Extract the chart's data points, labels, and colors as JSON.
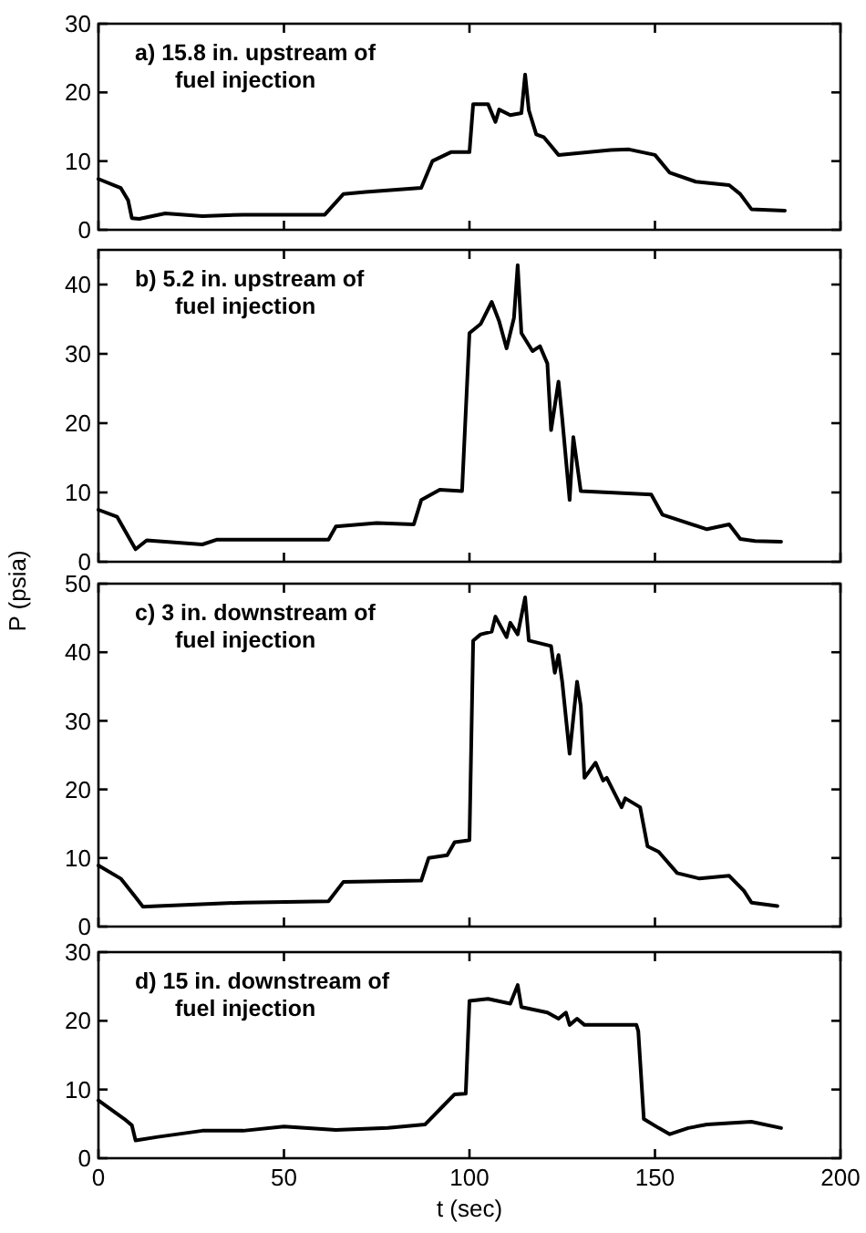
{
  "chart_data": [
    {
      "type": "line",
      "annotations": [
        "a) 15.8 in. upstream of\nfuel injection"
      ],
      "xlim": [
        0,
        200
      ],
      "xticks": [
        0,
        50,
        100,
        150,
        200
      ],
      "ylim": [
        0,
        30
      ],
      "yticks": [
        0,
        10,
        20,
        30
      ],
      "tick_labels": "y",
      "grid": false,
      "series": [
        {
          "color": "#000000",
          "x": [
            0,
            6,
            8,
            9,
            11,
            18,
            28,
            39,
            61,
            66,
            72,
            87,
            90,
            95,
            100,
            101,
            105,
            107,
            108,
            111,
            114,
            115,
            116,
            118,
            120,
            122,
            124,
            138,
            143,
            150,
            154,
            161,
            170,
            173,
            176,
            185
          ],
          "values": [
            7.4,
            6.1,
            4.3,
            1.7,
            1.6,
            2.4,
            2.0,
            2.2,
            2.2,
            5.2,
            5.5,
            6.1,
            10,
            11.3,
            11.3,
            18.3,
            18.3,
            15.7,
            17.5,
            16.7,
            17,
            22.6,
            17.4,
            13.9,
            13.5,
            12.2,
            10.9,
            11.6,
            11.7,
            10.9,
            8.3,
            7.0,
            6.5,
            5.2,
            3,
            2.8
          ]
        }
      ]
    },
    {
      "type": "line",
      "annotations": [
        "b) 5.2 in. upstream of\nfuel injection"
      ],
      "ylabel": "P (psia)",
      "xlim": [
        0,
        200
      ],
      "xticks": [
        0,
        50,
        100,
        150,
        200
      ],
      "ylim": [
        0,
        45
      ],
      "yticks": [
        0,
        10,
        20,
        30,
        40
      ],
      "tick_labels": "y",
      "grid": false,
      "series": [
        {
          "color": "#000000",
          "x": [
            0,
            5,
            10,
            13,
            28,
            32,
            62,
            64,
            75,
            85,
            87,
            92,
            98,
            100,
            103,
            106,
            108,
            110,
            112,
            113,
            114,
            117,
            119,
            121,
            122,
            124,
            125,
            127,
            128,
            130,
            149,
            152,
            164,
            170,
            173,
            177,
            184
          ],
          "values": [
            7.5,
            6.5,
            1.8,
            3.1,
            2.5,
            3.2,
            3.2,
            5.1,
            5.6,
            5.4,
            8.9,
            10.4,
            10.2,
            33,
            34.3,
            37.5,
            34.7,
            30.8,
            35.2,
            42.8,
            33,
            30.4,
            31.1,
            28.6,
            19,
            26,
            20.7,
            8.9,
            18,
            10.2,
            9.7,
            6.8,
            4.7,
            5.4,
            3.3,
            3,
            2.9
          ]
        }
      ]
    },
    {
      "type": "line",
      "annotations": [
        "c) 3 in. downstream of\nfuel injection"
      ],
      "xlim": [
        0,
        200
      ],
      "xticks": [
        0,
        50,
        100,
        150,
        200
      ],
      "ylim": [
        0,
        50
      ],
      "yticks": [
        0,
        10,
        20,
        30,
        40,
        50
      ],
      "tick_labels": "y",
      "grid": false,
      "series": [
        {
          "color": "#000000",
          "x": [
            0,
            6,
            10,
            12,
            16,
            39,
            62,
            66,
            87,
            89,
            94,
            96,
            100,
            101,
            103,
            106,
            107,
            110,
            111,
            113,
            115,
            116,
            122,
            123,
            124,
            125,
            127,
            129,
            130,
            131,
            134,
            136,
            137,
            141,
            142,
            146,
            148,
            151,
            156,
            162,
            170,
            174,
            176,
            183
          ],
          "values": [
            8.9,
            7,
            4.3,
            2.9,
            3,
            3.5,
            3.7,
            6.5,
            6.7,
            10,
            10.4,
            12.3,
            12.6,
            41.7,
            42.6,
            43,
            45.2,
            42.2,
            44.3,
            42.6,
            48,
            41.7,
            40.9,
            37,
            39.6,
            35.7,
            25.2,
            35.7,
            32.2,
            21.7,
            23.9,
            21.3,
            21.7,
            17.4,
            18.7,
            17.4,
            11.7,
            10.9,
            7.8,
            7,
            7.4,
            5.2,
            3.5,
            3
          ]
        }
      ]
    },
    {
      "type": "line",
      "annotations": [
        "d) 15 in. downstream of\nfuel injection"
      ],
      "xlabel": "t (sec)",
      "xlim": [
        0,
        200
      ],
      "xticks": [
        0,
        50,
        100,
        150,
        200
      ],
      "ylim": [
        0,
        30
      ],
      "yticks": [
        0,
        10,
        20,
        30
      ],
      "grid": false,
      "series": [
        {
          "color": "#000000",
          "x": [
            0,
            7,
            9,
            10,
            16,
            28,
            39,
            50,
            64,
            78,
            88,
            92,
            96,
            99,
            100,
            105,
            111,
            113,
            114,
            121,
            124,
            126,
            127,
            129,
            131,
            145,
            145.5,
            147,
            151,
            154,
            159,
            164,
            176,
            184
          ],
          "values": [
            8.4,
            5.7,
            4.8,
            2.6,
            3.1,
            4.0,
            4.0,
            4.6,
            4.1,
            4.4,
            4.9,
            7.1,
            9.3,
            9.4,
            22.9,
            23.2,
            22.5,
            25.2,
            22,
            21.2,
            20.3,
            21.2,
            19.4,
            20.3,
            19.4,
            19.4,
            18.5,
            5.7,
            4.4,
            3.5,
            4.4,
            4.9,
            5.3,
            4.4
          ]
        }
      ]
    }
  ]
}
